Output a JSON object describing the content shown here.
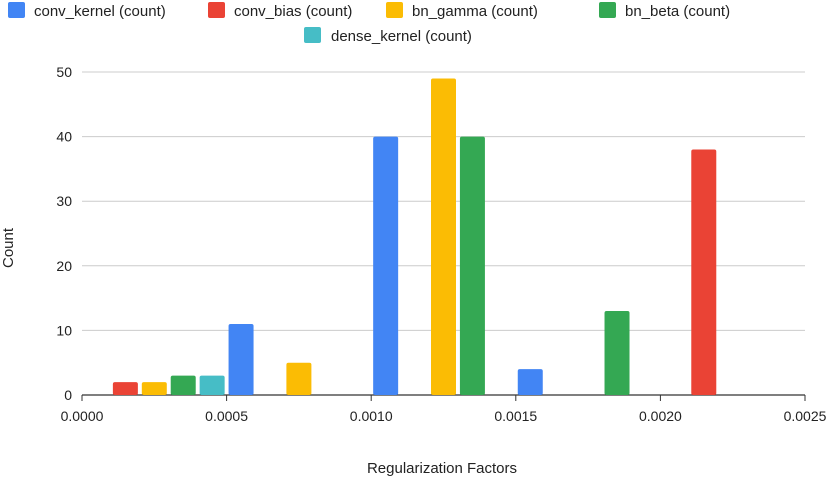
{
  "chart_data": {
    "type": "bar",
    "title": "",
    "xlabel": "Regularization Factors",
    "ylabel": "Count",
    "xlim": [
      0.0,
      0.0025
    ],
    "ylim": [
      0,
      50
    ],
    "x_ticks": [
      "0.0000",
      "0.0005",
      "0.0010",
      "0.0015",
      "0.0020",
      "0.0025"
    ],
    "y_ticks": [
      "0",
      "10",
      "20",
      "30",
      "40",
      "50"
    ],
    "grid": "horizontal",
    "legend_position": "top",
    "series": [
      {
        "name": "conv_kernel (count)",
        "color": "#4285f4",
        "points": [
          {
            "x": 0.00055,
            "y": 11
          },
          {
            "x": 0.00105,
            "y": 40
          },
          {
            "x": 0.00155,
            "y": 4
          }
        ]
      },
      {
        "name": "conv_bias (count)",
        "color": "#ea4335",
        "points": [
          {
            "x": 0.00015,
            "y": 2
          },
          {
            "x": 0.00215,
            "y": 38
          }
        ]
      },
      {
        "name": "bn_gamma (count)",
        "color": "#fbbc04",
        "points": [
          {
            "x": 0.00025,
            "y": 2
          },
          {
            "x": 0.00075,
            "y": 5
          },
          {
            "x": 0.00125,
            "y": 49
          }
        ]
      },
      {
        "name": "bn_beta (count)",
        "color": "#34a853",
        "points": [
          {
            "x": 0.00035,
            "y": 3
          },
          {
            "x": 0.00135,
            "y": 40
          },
          {
            "x": 0.00185,
            "y": 13
          }
        ]
      },
      {
        "name": "dense_kernel (count)",
        "color": "#46bdc6",
        "points": [
          {
            "x": 0.00045,
            "y": 3
          }
        ]
      }
    ]
  }
}
